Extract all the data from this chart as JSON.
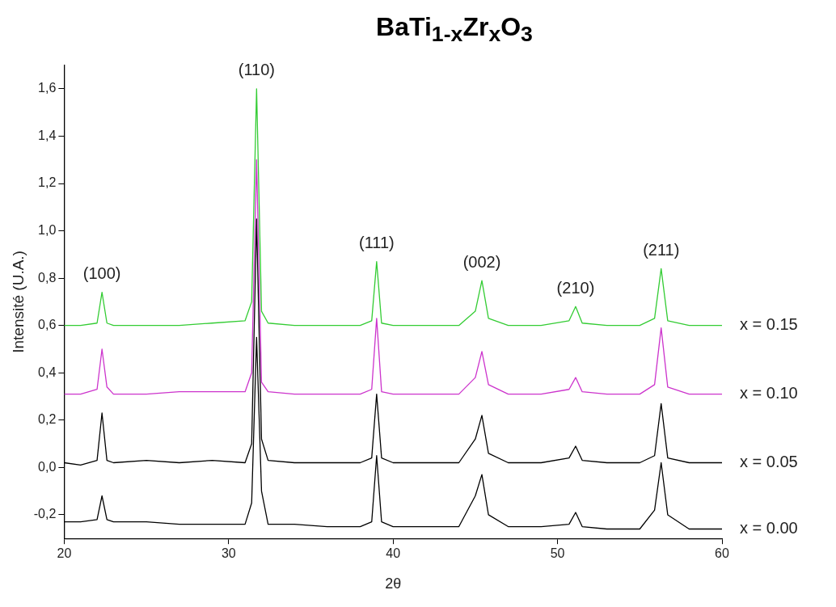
{
  "chart_data": {
    "type": "line",
    "title": "BaTi$_{1-x}$Zr$_{x}$O$_{3}$",
    "xlabel": "2θ",
    "ylabel": "Intensité (U.A.)",
    "x": [
      20,
      21,
      22,
      22.3,
      22.6,
      23,
      25,
      27,
      29,
      31,
      31.4,
      31.7,
      32.0,
      32.4,
      34,
      36,
      38,
      38.7,
      39.0,
      39.3,
      40,
      42,
      44,
      45.0,
      45.4,
      45.8,
      47,
      49,
      50.7,
      51.1,
      51.5,
      53,
      55,
      55.9,
      56.3,
      56.7,
      58,
      60
    ],
    "xlim": [
      20,
      60
    ],
    "xticks": [
      20,
      30,
      40,
      50,
      60
    ],
    "ylim": [
      -0.3,
      1.7
    ],
    "yticks": [
      {
        "value": -0.2,
        "label": "-0,2"
      },
      {
        "value": 0,
        "label": "0,0"
      },
      {
        "value": 0.2,
        "label": "0,2"
      },
      {
        "value": 0.4,
        "label": "0,4"
      },
      {
        "value": 0.6,
        "label": "0,6"
      },
      {
        "value": 0.8,
        "label": "0,8"
      },
      {
        "value": 1.0,
        "label": "1,0"
      },
      {
        "value": 1.2,
        "label": "1,2"
      },
      {
        "value": 1.4,
        "label": "1,4"
      },
      {
        "value": 1.6,
        "label": "1,6"
      }
    ],
    "grid": false,
    "legend": false,
    "marker": "none",
    "line_style": "solid",
    "series": [
      {
        "name": "x = 0.15",
        "color": "#33cc33",
        "values": [
          0.6,
          0.6,
          0.61,
          0.74,
          0.61,
          0.6,
          0.6,
          0.6,
          0.61,
          0.62,
          0.7,
          1.6,
          0.66,
          0.61,
          0.6,
          0.6,
          0.6,
          0.62,
          0.87,
          0.61,
          0.6,
          0.6,
          0.6,
          0.66,
          0.79,
          0.63,
          0.6,
          0.6,
          0.62,
          0.68,
          0.61,
          0.6,
          0.6,
          0.63,
          0.84,
          0.62,
          0.6,
          0.6
        ]
      },
      {
        "name": "x = 0.10",
        "color": "#cc33cc",
        "values": [
          0.31,
          0.31,
          0.33,
          0.5,
          0.34,
          0.31,
          0.31,
          0.32,
          0.32,
          0.32,
          0.4,
          1.3,
          0.36,
          0.32,
          0.31,
          0.31,
          0.31,
          0.33,
          0.63,
          0.32,
          0.31,
          0.31,
          0.31,
          0.38,
          0.49,
          0.35,
          0.31,
          0.31,
          0.33,
          0.38,
          0.32,
          0.31,
          0.31,
          0.35,
          0.59,
          0.34,
          0.31,
          0.31
        ]
      },
      {
        "name": "x = 0.05",
        "color": "#000000",
        "values": [
          0.02,
          0.01,
          0.03,
          0.23,
          0.03,
          0.02,
          0.03,
          0.02,
          0.03,
          0.02,
          0.1,
          1.05,
          0.12,
          0.03,
          0.02,
          0.02,
          0.02,
          0.04,
          0.31,
          0.04,
          0.02,
          0.02,
          0.02,
          0.12,
          0.22,
          0.06,
          0.02,
          0.02,
          0.04,
          0.09,
          0.03,
          0.02,
          0.02,
          0.05,
          0.27,
          0.04,
          0.02,
          0.02
        ]
      },
      {
        "name": "x = 0.00",
        "color": "#000000",
        "values": [
          -0.23,
          -0.23,
          -0.22,
          -0.12,
          -0.22,
          -0.23,
          -0.23,
          -0.24,
          -0.24,
          -0.24,
          -0.15,
          0.55,
          -0.1,
          -0.24,
          -0.24,
          -0.25,
          -0.25,
          -0.23,
          0.05,
          -0.23,
          -0.25,
          -0.25,
          -0.25,
          -0.12,
          -0.03,
          -0.2,
          -0.25,
          -0.25,
          -0.24,
          -0.19,
          -0.25,
          -0.26,
          -0.26,
          -0.18,
          0.02,
          -0.2,
          -0.26,
          -0.26
        ]
      }
    ],
    "annotations": [
      {
        "text": "(100)",
        "x": 22.3,
        "y": 0.74
      },
      {
        "text": "(110)",
        "x": 31.7,
        "y": 1.6
      },
      {
        "text": "(111)",
        "x": 39.0,
        "y": 0.87
      },
      {
        "text": "(002)",
        "x": 45.4,
        "y": 0.79
      },
      {
        "text": "(210)",
        "x": 51.1,
        "y": 0.68
      },
      {
        "text": "(211)",
        "x": 56.3,
        "y": 0.84
      }
    ]
  }
}
